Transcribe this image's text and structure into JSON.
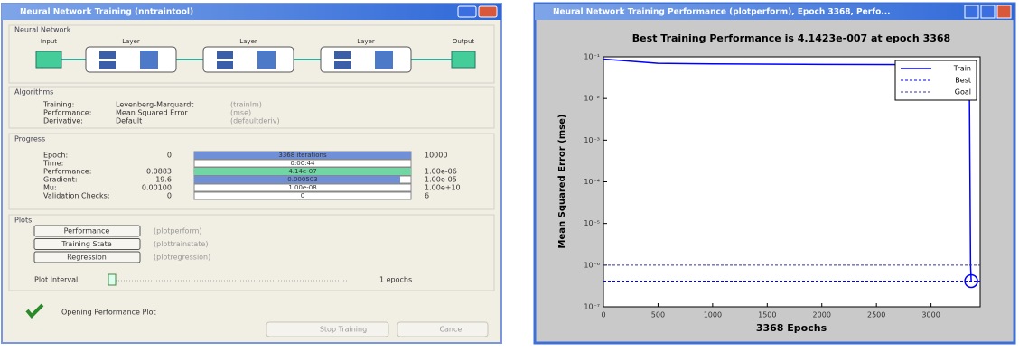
{
  "training_window": {
    "title": "Neural Network Training (nntraintool)",
    "network": {
      "heading": "Neural Network",
      "labels": [
        "Input",
        "Layer",
        "Layer",
        "Layer",
        "Output"
      ]
    },
    "algorithms": {
      "heading": "Algorithms",
      "rows": [
        [
          "Training:",
          "Levenberg-Marquardt",
          "(trainlm)"
        ],
        [
          "Performance:",
          "Mean Squared Error",
          "(mse)"
        ],
        [
          "Derivative:",
          "Default",
          "(defaultderiv)"
        ]
      ]
    },
    "progress": {
      "heading": "Progress",
      "rows": [
        {
          "label": "Epoch:",
          "start": "0",
          "current": "3368 iterations",
          "end": "10000"
        },
        {
          "label": "Time:",
          "current": "0:00:44"
        },
        {
          "label": "Performance:",
          "start": "0.0883",
          "current": "4.14e-07",
          "end": "1.00e-06"
        },
        {
          "label": "Gradient:",
          "start": "19.6",
          "current": "0.000503",
          "end": "1.00e-05"
        },
        {
          "label": "Mu:",
          "start": "0.00100",
          "current": "1.00e-08",
          "end": "1.00e+10"
        },
        {
          "label": "Validation Checks:",
          "start": "0",
          "current": "0",
          "end": "6"
        }
      ]
    },
    "plots": {
      "heading": "Plots",
      "buttons": [
        [
          "Performance",
          "(plotperform)"
        ],
        [
          "Training State",
          "(plottrainstate)"
        ],
        [
          "Regression",
          "(plotregression)"
        ]
      ],
      "interval_label": "Plot Interval:",
      "interval_value": "1 epochs"
    },
    "status": "Opening Performance Plot",
    "buttons": [
      "Stop Training",
      "Cancel"
    ]
  },
  "performance_window": {
    "title": "Neural Network Training Performance (plotperform), Epoch 3368, Perfo..."
  },
  "chart_data": {
    "type": "line",
    "title": "Best Training Performance is 4.1423e-007 at epoch 3368",
    "xlabel": "3368 Epochs",
    "ylabel": "Mean Squared Error  (mse)",
    "xlim": [
      0,
      3450
    ],
    "xticks": [
      0,
      500,
      1000,
      1500,
      2000,
      2500,
      3000
    ],
    "ylim": [
      1e-07,
      0.1
    ],
    "log_y": true,
    "yticks": [
      {
        "value": 1e-07,
        "label": "10⁻⁷"
      },
      {
        "value": 1e-06,
        "label": "10⁻⁶"
      },
      {
        "value": 1e-05,
        "label": "10⁻⁵"
      },
      {
        "value": 0.0001,
        "label": "10⁻⁴"
      },
      {
        "value": 0.001,
        "label": "10⁻³"
      },
      {
        "value": 0.01,
        "label": "10⁻²"
      },
      {
        "value": 0.1,
        "label": "10⁻¹"
      }
    ],
    "legend": "upper right",
    "series": [
      {
        "name": "Train",
        "color": "#0000ff",
        "style": "solid",
        "x": [
          0,
          500,
          1000,
          2000,
          3000,
          3340,
          3352,
          3362,
          3368
        ],
        "values": [
          0.0883,
          0.07,
          0.068,
          0.066,
          0.065,
          0.06,
          0.01,
          1e-06,
          4.1423e-07
        ]
      },
      {
        "name": "Best",
        "color": "#0000ff",
        "style": "dashed",
        "x": [
          0,
          3450
        ],
        "values": [
          4.1423e-07,
          4.1423e-07
        ]
      },
      {
        "name": "Goal",
        "color": "#333399",
        "style": "dashed",
        "x": [
          0,
          3450
        ],
        "values": [
          1e-06,
          1e-06
        ]
      }
    ],
    "best_marker": {
      "x": 3368,
      "y": 4.1423e-07
    }
  }
}
